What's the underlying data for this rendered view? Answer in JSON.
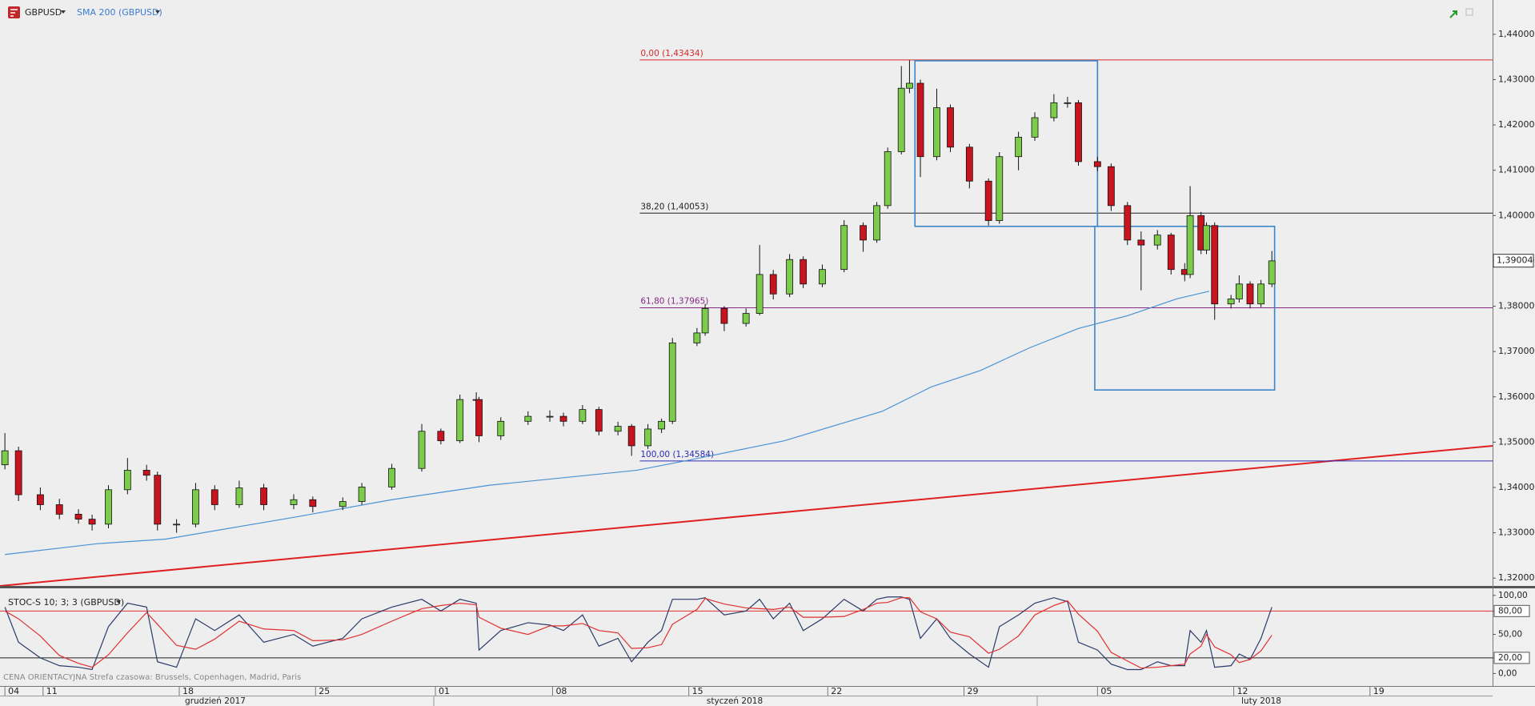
{
  "chart_data": [
    {
      "type": "candlestick",
      "title": "GBPUSD",
      "x": [
        -1.4,
        -0.9,
        -0.1,
        0.6,
        1.3,
        1.8,
        2.4,
        3.1,
        3.8,
        4.2,
        4.9,
        5.6,
        6.3,
        7.2,
        8.1,
        9.2,
        9.9,
        11.0,
        11.7,
        12.8,
        13.9,
        14.6,
        15.3,
        15.9,
        16.0,
        16.8,
        17.8,
        18.6,
        19.1,
        19.8,
        20.4,
        21.1,
        21.6,
        22.2,
        22.7,
        23.1,
        24.0,
        24.3,
        25.0,
        25.8,
        26.3,
        26.8,
        27.4,
        27.9,
        28.6,
        29.4,
        30.1,
        30.6,
        31.0,
        31.5,
        31.8,
        32.2,
        32.8,
        33.3,
        34.0,
        34.7,
        35.1,
        35.8,
        36.4,
        37.1,
        37.6,
        38.0,
        38.7,
        39.2,
        39.8,
        40.3,
        40.9,
        41.4,
        41.9,
        42.1,
        42.5,
        42.7,
        43.0,
        43.6,
        43.9,
        44.3,
        44.7,
        45.1
      ],
      "open": [
        1.345,
        1.3481,
        1.3384,
        1.3362,
        1.3341,
        1.333,
        1.3319,
        1.3395,
        1.3438,
        1.3427,
        1.3319,
        1.3319,
        1.3395,
        1.3362,
        1.3399,
        1.3362,
        1.3373,
        1.3358,
        1.3369,
        1.3401,
        1.3442,
        1.3524,
        1.3503,
        1.3594,
        1.3594,
        1.3514,
        1.3546,
        1.3557,
        1.3557,
        1.3546,
        1.3572,
        1.3524,
        1.3535,
        1.3492,
        1.3529,
        1.3546,
        1.3719,
        1.3741,
        1.3795,
        1.3762,
        1.3784,
        1.387,
        1.3827,
        1.3903,
        1.3849,
        1.3881,
        1.3978,
        1.3946,
        1.4022,
        1.4141,
        1.4281,
        1.4292,
        1.413,
        1.4238,
        1.4151,
        1.4076,
        1.3989,
        1.413,
        1.4173,
        1.4216,
        1.4249,
        1.4249,
        1.4119,
        1.4108,
        1.4022,
        1.3946,
        1.3935,
        1.3957,
        1.3881,
        1.387,
        1.4,
        1.3924,
        1.3978,
        1.3805,
        1.3816,
        1.3849,
        1.3805,
        1.3849
      ],
      "high": [
        1.352,
        1.349,
        1.34,
        1.3375,
        1.3352,
        1.334,
        1.3405,
        1.3465,
        1.345,
        1.3435,
        1.333,
        1.341,
        1.3405,
        1.3415,
        1.3408,
        1.3385,
        1.338,
        1.3378,
        1.341,
        1.3452,
        1.354,
        1.353,
        1.3605,
        1.361,
        1.36,
        1.3555,
        1.3568,
        1.357,
        1.3565,
        1.3582,
        1.3578,
        1.3545,
        1.354,
        1.354,
        1.3552,
        1.373,
        1.3752,
        1.3805,
        1.38,
        1.3795,
        1.3935,
        1.388,
        1.3915,
        1.391,
        1.3892,
        1.399,
        1.3985,
        1.403,
        1.415,
        1.433,
        1.4343,
        1.43,
        1.428,
        1.4245,
        1.4158,
        1.4082,
        1.414,
        1.4185,
        1.4228,
        1.4268,
        1.4262,
        1.4255,
        1.413,
        1.4115,
        1.403,
        1.3965,
        1.3968,
        1.3962,
        1.3895,
        1.4065,
        1.4008,
        1.3985,
        1.3985,
        1.3825,
        1.3868,
        1.3855,
        1.3858,
        1.3922
      ],
      "low": [
        1.344,
        1.337,
        1.335,
        1.333,
        1.332,
        1.3305,
        1.331,
        1.3385,
        1.3415,
        1.3305,
        1.33,
        1.3312,
        1.335,
        1.3355,
        1.335,
        1.3352,
        1.3345,
        1.335,
        1.3362,
        1.3395,
        1.3435,
        1.3495,
        1.3498,
        1.3585,
        1.35,
        1.3505,
        1.3538,
        1.3545,
        1.3535,
        1.354,
        1.3515,
        1.3515,
        1.347,
        1.3485,
        1.352,
        1.354,
        1.3712,
        1.3735,
        1.3745,
        1.3755,
        1.378,
        1.3815,
        1.382,
        1.384,
        1.3842,
        1.3875,
        1.392,
        1.394,
        1.4015,
        1.4135,
        1.427,
        1.4085,
        1.4122,
        1.414,
        1.406,
        1.3978,
        1.3982,
        1.41,
        1.4165,
        1.4208,
        1.4238,
        1.411,
        1.4098,
        1.401,
        1.3935,
        1.3835,
        1.3925,
        1.387,
        1.3855,
        1.3862,
        1.3915,
        1.3915,
        1.377,
        1.3795,
        1.3808,
        1.3795,
        1.3798,
        1.3842
      ],
      "close": [
        1.3481,
        1.3384,
        1.3362,
        1.3341,
        1.333,
        1.3319,
        1.3395,
        1.3438,
        1.3427,
        1.3319,
        1.3319,
        1.3395,
        1.3362,
        1.3399,
        1.3362,
        1.3373,
        1.3358,
        1.3369,
        1.3401,
        1.3442,
        1.3524,
        1.3503,
        1.3594,
        1.3594,
        1.3514,
        1.3546,
        1.3557,
        1.3557,
        1.3546,
        1.3572,
        1.3524,
        1.3535,
        1.3492,
        1.3529,
        1.3546,
        1.3719,
        1.3741,
        1.3795,
        1.3762,
        1.3784,
        1.387,
        1.3827,
        1.3903,
        1.3849,
        1.3881,
        1.3978,
        1.3946,
        1.4022,
        1.4141,
        1.4281,
        1.4292,
        1.413,
        1.4238,
        1.4151,
        1.4076,
        1.3989,
        1.413,
        1.4173,
        1.4216,
        1.4249,
        1.4249,
        1.4119,
        1.4108,
        1.4022,
        1.3946,
        1.3935,
        1.3957,
        1.3881,
        1.387,
        1.4,
        1.3924,
        1.3978,
        1.3805,
        1.3816,
        1.3849,
        1.3805,
        1.3849,
        1.39
      ],
      "up_color": "#7ccc4c",
      "down_color": "#c8141e",
      "series": [
        {
          "name": "SMA 200 (GBPUSD)",
          "color": "#4a92d6",
          "x": [
            -1.4,
            2.0,
            4.5,
            9.2,
            12.8,
            16.4,
            20.0,
            21.8,
            23.6,
            27.2,
            30.8,
            32.6,
            34.4,
            36.2,
            38.0,
            39.8,
            41.6,
            42.8
          ],
          "values": [
            1.3252,
            1.3276,
            1.3286,
            1.3334,
            1.3373,
            1.3405,
            1.3427,
            1.3438,
            1.3459,
            1.3503,
            1.3568,
            1.3622,
            1.3658,
            1.3708,
            1.3751,
            1.3779,
            1.3816,
            1.3833
          ]
        }
      ],
      "xlim": [
        -1.58,
        53.2
      ],
      "ylim": [
        1.31827,
        1.44757
      ],
      "yticks": [
        {
          "value": 1.32,
          "label": "1,32000"
        },
        {
          "value": 1.33,
          "label": "1,33000"
        },
        {
          "value": 1.34,
          "label": "1,34000"
        },
        {
          "value": 1.35,
          "label": "1,35000"
        },
        {
          "value": 1.36,
          "label": "1,36000"
        },
        {
          "value": 1.37,
          "label": "1,37000"
        },
        {
          "value": 1.38,
          "label": "1,38000"
        },
        {
          "value": 1.39,
          "label": "1,39000"
        },
        {
          "value": 1.4,
          "label": "1,40000"
        },
        {
          "value": 1.41,
          "label": "1,41000"
        },
        {
          "value": 1.42,
          "label": "1,42000"
        },
        {
          "value": 1.43,
          "label": "1,43000"
        },
        {
          "value": 1.44,
          "label": "1,44000"
        }
      ],
      "xticks": [
        {
          "value": -1.4,
          "label": "04"
        },
        {
          "value": 0,
          "label": "11"
        },
        {
          "value": 5.0,
          "label": "18"
        },
        {
          "value": 10.0,
          "label": "25"
        },
        {
          "value": 14.4,
          "label": "01"
        },
        {
          "value": 18.7,
          "label": "08"
        },
        {
          "value": 23.7,
          "label": "15"
        },
        {
          "value": 28.8,
          "label": "22"
        },
        {
          "value": 33.8,
          "label": "29"
        },
        {
          "value": 38.7,
          "label": "05"
        },
        {
          "value": 43.7,
          "label": "12"
        },
        {
          "value": 48.7,
          "label": "19"
        }
      ],
      "x_groups": [
        "grudzień 2017",
        "styczeń 2018",
        "luty 2018"
      ],
      "levels": [
        {
          "label": "0,00 (1,43434)",
          "value": 1.43434,
          "color": "#d42a2a"
        },
        {
          "label": "38,20 (1,40053)",
          "value": 1.40053,
          "color": "#222222"
        },
        {
          "label": "61,80 (1,37965)",
          "value": 1.37965,
          "color": "#8a2a8a"
        },
        {
          "label": "100,00 (1,34584)",
          "value": 1.34584,
          "color": "#2a2ab8"
        }
      ],
      "levels_start": 21.9,
      "rectangles": [
        {
          "x": [
            32.0,
            38.7
          ],
          "y": [
            1.43416,
            1.39762
          ],
          "color": "#3a86c8"
        },
        {
          "x": [
            38.6,
            45.2
          ],
          "y": [
            1.39762,
            1.36151
          ],
          "color": "#3a86c8"
        }
      ],
      "trendline": {
        "x": [
          -1.58,
          53.2
        ],
        "y": [
          1.31827,
          1.34919
        ],
        "color": "#e02020"
      },
      "last_price": {
        "value": 1.39004,
        "label": "1,39004"
      }
    },
    {
      "type": "line",
      "title": "STOC-S 10; 3; 3 (GBPUSD)",
      "footnote": "CENA ORIENTACYJNA   Strefa czasowa: Brussels, Copenhagen, Madrid, Paris",
      "series": [
        {
          "color": "#2a3a6a",
          "values": [
            85,
            40,
            20,
            10,
            8,
            5,
            60,
            90,
            85,
            15,
            8,
            70,
            55,
            75,
            40,
            50,
            35,
            45,
            70,
            85,
            95,
            80,
            95,
            90,
            30,
            55,
            65,
            62,
            55,
            75,
            35,
            45,
            15,
            40,
            55,
            95,
            95,
            97,
            75,
            80,
            95,
            70,
            90,
            55,
            70,
            95,
            80,
            95,
            98,
            98,
            95,
            45,
            70,
            45,
            25,
            8,
            60,
            75,
            90,
            97,
            92,
            40,
            30,
            12,
            5,
            5,
            15,
            10,
            10,
            55,
            40,
            55,
            8,
            10,
            25,
            18,
            45,
            85
          ]
        },
        {
          "color": "#e03030",
          "values": [
            80,
            70,
            48,
            23,
            13,
            8,
            24,
            52,
            78,
            63,
            36,
            31,
            44,
            67,
            57,
            55,
            42,
            43,
            50,
            67,
            83,
            87,
            90,
            88,
            72,
            58,
            50,
            61,
            61,
            64,
            55,
            52,
            32,
            33,
            37,
            63,
            82,
            96,
            89,
            84,
            83,
            82,
            85,
            72,
            72,
            73,
            82,
            90,
            91,
            97,
            97,
            79,
            70,
            53,
            47,
            26,
            31,
            48,
            75,
            87,
            93,
            76,
            54,
            27,
            16,
            7,
            8,
            10,
            12,
            25,
            35,
            50,
            34,
            24,
            14,
            18,
            29,
            49
          ]
        }
      ],
      "ylim": [
        -16,
        108
      ],
      "yticks": [
        {
          "value": 0,
          "label": "0,00"
        },
        {
          "value": 20,
          "label": "20,00"
        },
        {
          "value": 50,
          "label": "50,00"
        },
        {
          "value": 80,
          "label": "80,00"
        },
        {
          "value": 100,
          "label": "100,00"
        }
      ],
      "levels": [
        {
          "value": 80,
          "color": "#e03030"
        },
        {
          "value": 20,
          "color": "#222222"
        }
      ]
    }
  ]
}
